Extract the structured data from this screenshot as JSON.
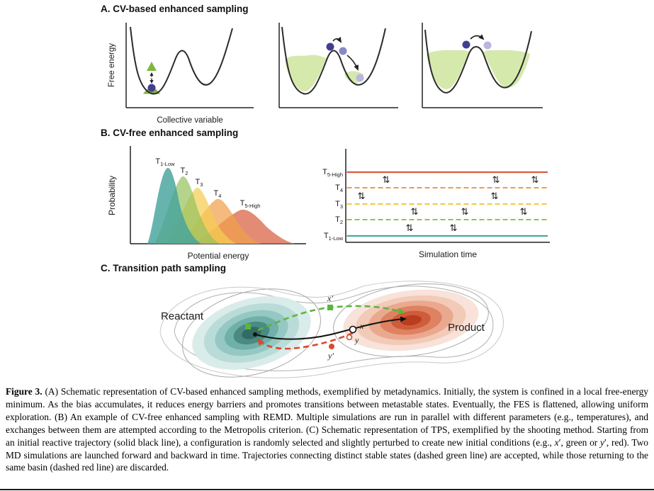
{
  "figure": {
    "a": {
      "title": "A. CV-based enhanced sampling",
      "ylabel": "Free energy",
      "xlabel": "Collective variable"
    },
    "b": {
      "title": "B. CV-free enhanced sampling",
      "dist": {
        "ylabel": "Probability",
        "xlabel": "Potential energy",
        "labels": [
          {
            "m": "T",
            "s": "1-Low"
          },
          {
            "m": "T",
            "s": "2"
          },
          {
            "m": "T",
            "s": "3"
          },
          {
            "m": "T",
            "s": "4"
          },
          {
            "m": "T",
            "s": "5-High"
          }
        ],
        "colors": [
          "#46a49c",
          "#94c25e",
          "#f4cd52",
          "#f0a04c",
          "#dd6a4e"
        ]
      },
      "remd": {
        "xlabel": "Simulation time",
        "labels": [
          {
            "m": "T",
            "s": "5-High"
          },
          {
            "m": "T",
            "s": "4"
          },
          {
            "m": "T",
            "s": "3"
          },
          {
            "m": "T",
            "s": "2"
          },
          {
            "m": "T",
            "s": "1-Low"
          }
        ],
        "colors": [
          "#d85c41",
          "#f09a4a",
          "#f1c646",
          "#94c05a",
          "#4ba8a0"
        ]
      }
    },
    "c": {
      "title": "C. Transition path sampling",
      "reactant": "Reactant",
      "product": "Product",
      "points": {
        "xp": "x′",
        "x": "x",
        "y": "y",
        "yp": "y′"
      }
    },
    "icons": {
      "exchange": "⇅"
    }
  },
  "colors": {
    "system_dark": "#443e90",
    "system_mid": "#8a87c8",
    "system_light": "#b9b7dd",
    "bias": "#7fb541",
    "bias_fill": "#d6e9ad",
    "accept": "#5cb53c",
    "reject": "#d84b2f"
  },
  "caption": {
    "lead": "Figure 3.",
    "segments": [
      {
        "t": " (A) Schematic representation of CV-based enhanced sampling methods, exemplified by metadynamics. Initially, the system is confined in a local free-energy minimum. As the bias accumulates, it reduces energy barriers and promotes transitions between metastable states. Eventually, the FES is flattened, allowing uniform exploration. (B) An example of CV-free enhanced sampling with REMD. Multiple simulations are run in parallel with different parameters (e.g., temperatures), and exchanges between them are attempted according to the Metropolis criterion. (C) Schematic representation of TPS, exemplified by the shooting method. Starting from an initial reactive trajectory (solid black line), a configuration is randomly selected and slightly perturbed to create new initial conditions (e.g., "
      },
      {
        "t": "x",
        "i": true
      },
      {
        "t": "′, green or "
      },
      {
        "t": "y",
        "i": true
      },
      {
        "t": "′, red). Two MD simulations are launched forward and backward in time. Trajectories connecting distinct stable states (dashed green line) are accepted, while those returning to the same basin (dashed red line) are discarded."
      }
    ]
  }
}
